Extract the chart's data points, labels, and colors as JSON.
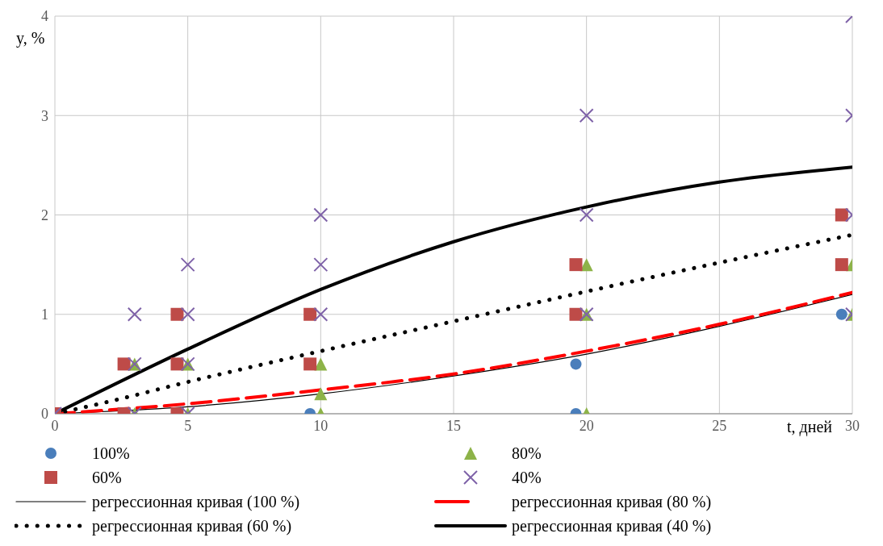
{
  "chart_data": {
    "type": "scatter",
    "xlabel": "t, дней",
    "ylabel": "y, %",
    "xlim": [
      0,
      30
    ],
    "ylim": [
      0,
      4
    ],
    "xticks": [
      0,
      5,
      10,
      15,
      20,
      25,
      30
    ],
    "yticks": [
      0,
      1,
      2,
      3,
      4
    ],
    "grid": true,
    "legend": "bottom",
    "series": [
      {
        "name": "100%",
        "marker": "circle",
        "color": "#4a7ebb",
        "x": [
          9.6,
          19.6,
          19.6,
          29.6
        ],
        "values": [
          0,
          0,
          0.5,
          1
        ]
      },
      {
        "name": "80%",
        "marker": "triangle",
        "color": "#8db348",
        "x": [
          3,
          3,
          5,
          5,
          10,
          10,
          10,
          20,
          20,
          20,
          30,
          30
        ],
        "values": [
          0,
          0.5,
          0,
          0.5,
          0,
          0.2,
          0.5,
          0,
          1,
          1.5,
          1,
          1.5
        ]
      },
      {
        "name": "60%",
        "marker": "square",
        "color": "#be4b48",
        "x": [
          0,
          2.6,
          2.6,
          4.6,
          4.6,
          4.6,
          9.6,
          9.6,
          19.6,
          19.6,
          29.6,
          29.6
        ],
        "values": [
          0,
          0,
          0.5,
          0,
          0.5,
          1,
          0.5,
          1,
          1,
          1.5,
          1.5,
          2
        ]
      },
      {
        "name": "40%",
        "marker": "cross",
        "color": "#7e62a8",
        "x": [
          0,
          3,
          3,
          3,
          5,
          5,
          5,
          5,
          10,
          10,
          10,
          20,
          20,
          20,
          30,
          30,
          30,
          30
        ],
        "values": [
          0,
          0,
          0.5,
          1,
          0,
          0.5,
          1,
          1.5,
          1,
          1.5,
          2,
          1,
          2,
          3,
          1,
          2,
          3,
          4
        ]
      },
      {
        "name": "регрессионная кривая (100 %)",
        "type": "line",
        "line_style": "solid",
        "marker": "none",
        "color": "#000000",
        "x": [
          0,
          5,
          10,
          15,
          20,
          25,
          30
        ],
        "values": [
          0,
          0.07,
          0.2,
          0.38,
          0.6,
          0.88,
          1.2
        ]
      },
      {
        "name": "регрессионная кривая (80 %)",
        "type": "line",
        "line_style": "dashed",
        "marker": "none",
        "color": "#ff0000",
        "x": [
          0,
          5,
          10,
          15,
          20,
          25,
          30
        ],
        "values": [
          0,
          0.1,
          0.24,
          0.4,
          0.63,
          0.9,
          1.22
        ]
      },
      {
        "name": "регрессионная кривая (60 %)",
        "type": "line",
        "line_style": "dotted",
        "marker": "none",
        "color": "#000000",
        "x": [
          0,
          2,
          5,
          10,
          15,
          20,
          25,
          30
        ],
        "values": [
          0,
          0.12,
          0.32,
          0.63,
          0.93,
          1.23,
          1.52,
          1.8
        ]
      },
      {
        "name": "регрессионная кривая (40 %)",
        "type": "line",
        "line_style": "solid",
        "marker": "none",
        "color": "#000000",
        "x": [
          0,
          5,
          10,
          15,
          20,
          25,
          30
        ],
        "values": [
          0,
          0.65,
          1.25,
          1.73,
          2.08,
          2.33,
          2.48
        ]
      }
    ]
  }
}
